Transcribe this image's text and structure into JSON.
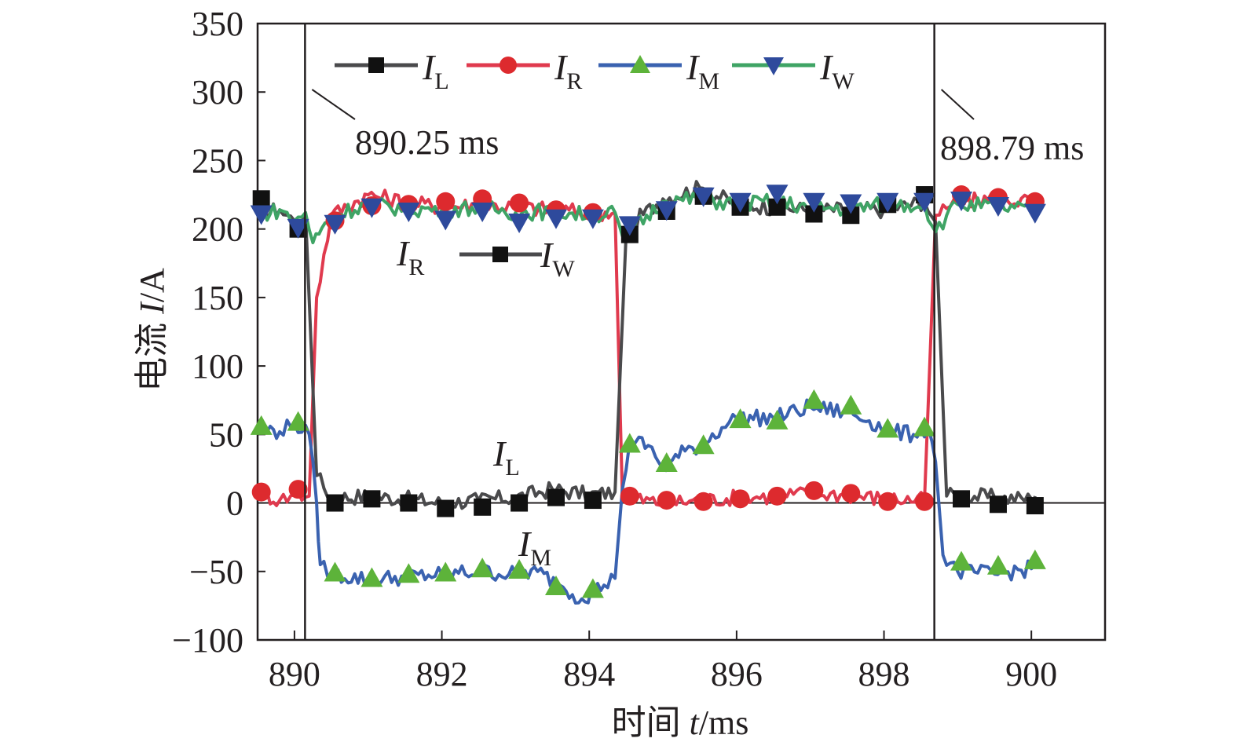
{
  "chart_data": {
    "type": "line",
    "title": "",
    "xlabel": "时间 t/ms",
    "xlabel_parts": {
      "cn": "时间 ",
      "var": "t",
      "unit": "/ms"
    },
    "ylabel": "电流 I/A",
    "ylabel_parts": {
      "cn": "电流 ",
      "var": "I",
      "unit": "/A"
    },
    "xlim": [
      889.5,
      901.0
    ],
    "ylim": [
      -100,
      350
    ],
    "xticks": [
      890,
      892,
      894,
      896,
      898,
      900
    ],
    "xtick_labels": [
      "890",
      "892",
      "894",
      "896",
      "898",
      "900"
    ],
    "yticks": [
      -100,
      -50,
      0,
      50,
      100,
      150,
      200,
      250,
      300,
      350
    ],
    "ytick_labels": [
      "−100",
      "−50",
      "0",
      "50",
      "100",
      "150",
      "200",
      "250",
      "300",
      "350"
    ],
    "grid": false,
    "legend_position": "top",
    "legend": [
      {
        "name": "I_L",
        "main": "I",
        "sub": "L",
        "color": "#4a4a4c",
        "marker": "square",
        "marker_color": "#111111"
      },
      {
        "name": "I_R",
        "main": "I",
        "sub": "R",
        "color": "#e03a4e",
        "marker": "circle",
        "marker_color": "#dd2a2e"
      },
      {
        "name": "I_M",
        "main": "I",
        "sub": "M",
        "color": "#3a62b0",
        "marker": "triangle-up",
        "marker_color": "#5db33a"
      },
      {
        "name": "I_W",
        "main": "I",
        "sub": "W",
        "color": "#3fa465",
        "marker": "triangle-down",
        "marker_color": "#2e4a9c"
      }
    ],
    "zero_line": 0,
    "vlines": [
      {
        "x": 890.25,
        "label": "890.25 ms"
      },
      {
        "x": 898.79,
        "label": "898.79 ms"
      }
    ],
    "annotations": [
      {
        "text_main": "I",
        "text_sub": "R",
        "near": "upper-left plateau, ~180 A"
      },
      {
        "text_main": "I",
        "text_sub": "W",
        "near": "upper-left plateau, ~175 A"
      },
      {
        "text_main": "I",
        "text_sub": "L",
        "near": "~893.3 ms, ~30 A"
      },
      {
        "text_main": "I",
        "text_sub": "M",
        "near": "~893.4 ms, ~-38 A"
      }
    ],
    "segments_note": "Piecewise: 889.5–890.25 (IL≈IW≈210, IR≈5, IM≈55); 890.25–894.45 (IR≈IW≈215, IL≈3, IM≈-55); 894.45–898.75 (IL≈IW≈215, IR≈3, IM rises 35→70→50); 898.75–901 (IR≈IW≈218, IL≈2, IM≈-48)",
    "series": [
      {
        "name": "I_L",
        "x": [
          889.5,
          889.8,
          890.0,
          890.15,
          890.3,
          890.5,
          891.0,
          891.5,
          892.0,
          892.5,
          893.0,
          893.5,
          894.0,
          894.35,
          894.5,
          894.6,
          895.0,
          895.5,
          896.0,
          896.5,
          897.0,
          897.5,
          898.0,
          898.55,
          898.7,
          898.85,
          899.0,
          899.5,
          900.0,
          900.05
        ],
        "y": [
          212,
          214,
          206,
          212,
          20,
          4,
          5,
          3,
          0,
          2,
          4,
          10,
          6,
          8,
          195,
          205,
          222,
          230,
          218,
          216,
          214,
          214,
          214,
          220,
          205,
          5,
          6,
          4,
          3,
          5
        ],
        "marker_x": [
          889.55,
          890.05,
          890.55,
          891.05,
          891.55,
          892.05,
          892.55,
          893.05,
          893.55,
          894.05,
          894.55,
          895.05,
          895.55,
          896.05,
          896.55,
          897.05,
          897.55,
          898.05,
          898.55,
          899.05,
          899.55,
          900.05
        ],
        "marker_y": [
          222,
          200,
          0,
          3,
          0,
          -4,
          -3,
          0,
          4,
          2,
          196,
          213,
          224,
          216,
          216,
          211,
          210,
          218,
          225,
          3,
          -1,
          -2
        ]
      },
      {
        "name": "I_R",
        "x": [
          889.5,
          889.8,
          890.0,
          890.2,
          890.3,
          890.5,
          891.0,
          891.5,
          892.0,
          892.5,
          893.0,
          893.5,
          894.0,
          894.35,
          894.45,
          894.6,
          895.0,
          895.5,
          896.0,
          896.5,
          897.0,
          897.5,
          898.0,
          898.55,
          898.7,
          898.85,
          899.0,
          899.5,
          900.0,
          900.05
        ],
        "y": [
          8,
          2,
          6,
          5,
          150,
          210,
          225,
          220,
          216,
          218,
          216,
          214,
          212,
          212,
          5,
          3,
          0,
          2,
          4,
          5,
          7,
          6,
          3,
          2,
          210,
          215,
          220,
          222,
          220,
          222
        ],
        "marker_x": [
          889.55,
          890.05,
          890.55,
          891.05,
          891.55,
          892.05,
          892.55,
          893.05,
          893.55,
          894.05,
          894.55,
          895.05,
          895.55,
          896.05,
          896.55,
          897.05,
          897.55,
          898.05,
          898.55,
          899.05,
          899.55,
          900.05
        ],
        "marker_y": [
          8,
          10,
          206,
          217,
          218,
          220,
          222,
          219,
          214,
          212,
          5,
          2,
          1,
          3,
          5,
          9,
          7,
          1,
          1,
          225,
          223,
          220
        ]
      },
      {
        "name": "I_M",
        "x": [
          889.5,
          889.8,
          890.0,
          890.2,
          890.3,
          890.35,
          890.5,
          891.0,
          891.5,
          892.0,
          892.5,
          893.0,
          893.3,
          893.6,
          893.9,
          894.2,
          894.35,
          894.45,
          894.55,
          894.8,
          895.0,
          895.3,
          895.5,
          895.8,
          896.0,
          896.5,
          897.0,
          897.5,
          897.8,
          898.1,
          898.4,
          898.6,
          898.7,
          898.8,
          899.0,
          899.5,
          900.0,
          900.05
        ],
        "y": [
          55,
          52,
          58,
          50,
          0,
          -45,
          -52,
          -56,
          -54,
          -52,
          -50,
          -52,
          -50,
          -60,
          -70,
          -60,
          -55,
          10,
          45,
          42,
          25,
          38,
          42,
          55,
          62,
          62,
          70,
          66,
          60,
          52,
          50,
          55,
          30,
          -38,
          -50,
          -52,
          -48,
          -46
        ],
        "marker_x": [
          889.55,
          890.05,
          890.55,
          891.05,
          891.55,
          892.05,
          892.55,
          893.05,
          893.55,
          894.05,
          894.55,
          895.05,
          895.55,
          896.05,
          896.55,
          897.05,
          897.55,
          898.05,
          898.55,
          899.05,
          899.55,
          900.05
        ],
        "marker_y": [
          56,
          59,
          -51,
          -55,
          -52,
          -51,
          -48,
          -49,
          -61,
          -63,
          43,
          29,
          42,
          61,
          60,
          75,
          71,
          54,
          55,
          -43,
          -46,
          -42
        ]
      },
      {
        "name": "I_W",
        "x": [
          889.5,
          889.8,
          890.0,
          890.15,
          890.25,
          890.5,
          891.0,
          891.5,
          892.0,
          892.5,
          893.0,
          893.5,
          894.0,
          894.35,
          894.45,
          894.6,
          895.0,
          895.5,
          896.0,
          896.5,
          897.0,
          897.5,
          898.0,
          898.55,
          898.7,
          898.85,
          899.0,
          899.5,
          900.0,
          900.05
        ],
        "y": [
          210,
          214,
          206,
          212,
          190,
          210,
          218,
          215,
          214,
          216,
          212,
          213,
          210,
          212,
          195,
          200,
          220,
          222,
          218,
          220,
          216,
          215,
          218,
          218,
          198,
          210,
          218,
          216,
          214,
          212
        ],
        "marker_x": [
          889.55,
          890.05,
          890.55,
          891.05,
          891.55,
          892.05,
          892.55,
          893.05,
          893.55,
          894.05,
          894.55,
          895.05,
          895.55,
          896.05,
          896.55,
          897.05,
          897.55,
          898.05,
          898.55,
          899.05,
          899.55,
          900.05
        ],
        "marker_y": [
          211,
          201,
          204,
          216,
          213,
          207,
          213,
          205,
          208,
          208,
          203,
          214,
          224,
          220,
          226,
          220,
          219,
          220,
          220,
          221,
          217,
          212
        ]
      }
    ]
  }
}
